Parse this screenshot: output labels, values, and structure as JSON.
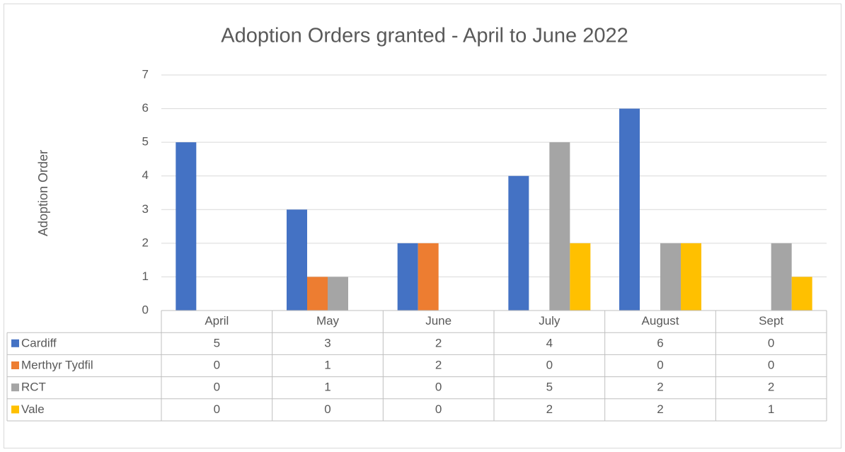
{
  "chart_data": {
    "type": "bar",
    "title": "Adoption Orders granted - April to June 2022",
    "y_label": "Adoption Order",
    "categories": [
      "April",
      "May",
      "June",
      "July",
      "August",
      "Sept"
    ],
    "series": [
      {
        "name": "Cardiff",
        "color": "#4472c4",
        "values": [
          5,
          3,
          2,
          4,
          6,
          0
        ]
      },
      {
        "name": "Merthyr Tydfil",
        "color": "#ed7d31",
        "values": [
          0,
          1,
          2,
          0,
          0,
          0
        ]
      },
      {
        "name": "RCT",
        "color": "#a5a5a5",
        "values": [
          0,
          1,
          0,
          5,
          2,
          2
        ]
      },
      {
        "name": "Vale",
        "color": "#ffc000",
        "values": [
          0,
          0,
          0,
          2,
          2,
          1
        ]
      }
    ],
    "ylim": [
      0,
      7
    ],
    "yticks": [
      0,
      1,
      2,
      3,
      4,
      5,
      6,
      7
    ],
    "grid": true,
    "data_table": true
  }
}
